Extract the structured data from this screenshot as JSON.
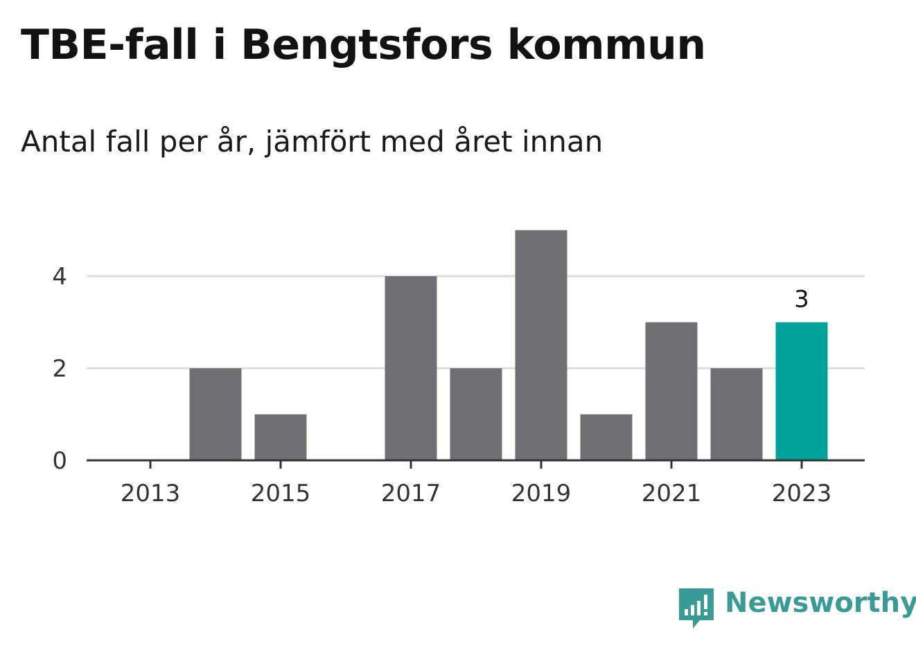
{
  "title": "TBE-fall i Bengtsfors kommun",
  "subtitle": "Antal fall per år, jämfört med året innan",
  "brand": {
    "name": "Newsworthy",
    "icon": "newsworthy-logo-icon",
    "color": "#3a9a95"
  },
  "colors": {
    "bar": "#706f74",
    "highlight": "#00a39b",
    "grid": "#dddddd",
    "axis": "#333333"
  },
  "chart_data": {
    "type": "bar",
    "categories": [
      "2013",
      "2014",
      "2015",
      "2016",
      "2017",
      "2018",
      "2019",
      "2020",
      "2021",
      "2022",
      "2023"
    ],
    "values": [
      0,
      2,
      1,
      0,
      4,
      2,
      5,
      1,
      3,
      2,
      3
    ],
    "x_tick_labels": [
      "2013",
      "2015",
      "2017",
      "2019",
      "2021",
      "2023"
    ],
    "y_ticks": [
      0,
      2,
      4
    ],
    "ylim": [
      0,
      5
    ],
    "grid": true,
    "highlight": {
      "category": "2023",
      "label": "3"
    },
    "xlabel": "",
    "ylabel": ""
  }
}
